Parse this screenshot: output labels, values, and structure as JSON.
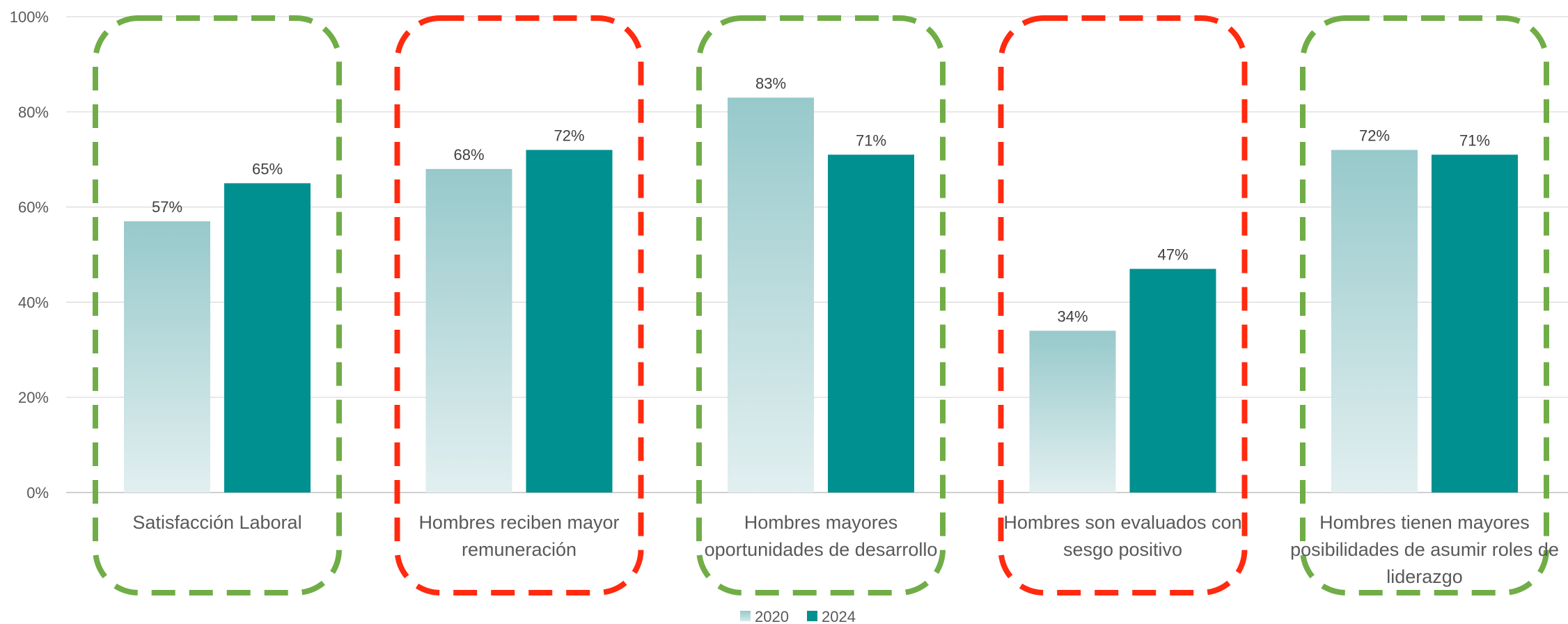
{
  "chart_data": {
    "type": "bar",
    "categories": [
      [
        "Satisfacción Laboral"
      ],
      [
        "Hombres reciben mayor",
        "remuneración"
      ],
      [
        "Hombres mayores",
        "oportunidades de desarrollo"
      ],
      [
        "Hombres son evaluados con",
        "sesgo positivo"
      ],
      [
        "Hombres tienen mayores",
        "posibilidades de asumir roles de",
        "liderazgo"
      ]
    ],
    "series": [
      {
        "name": "2020",
        "values": [
          57,
          68,
          83,
          34,
          72
        ],
        "color": "#a9d2d3"
      },
      {
        "name": "2024",
        "values": [
          65,
          72,
          71,
          47,
          71
        ],
        "color": "#009090"
      }
    ],
    "data_labels": [
      [
        "57%",
        "68%",
        "83%",
        "34%",
        "72%"
      ],
      [
        "65%",
        "72%",
        "71%",
        "47%",
        "71%"
      ]
    ],
    "y_ticks": [
      "0%",
      "20%",
      "40%",
      "60%",
      "80%",
      "100%"
    ],
    "ylim": [
      0,
      100
    ],
    "grid": true,
    "legend_position": "bottom",
    "highlight_colors": [
      "#70ad47",
      "#ff2a0f",
      "#70ad47",
      "#ff2a0f",
      "#70ad47"
    ]
  }
}
